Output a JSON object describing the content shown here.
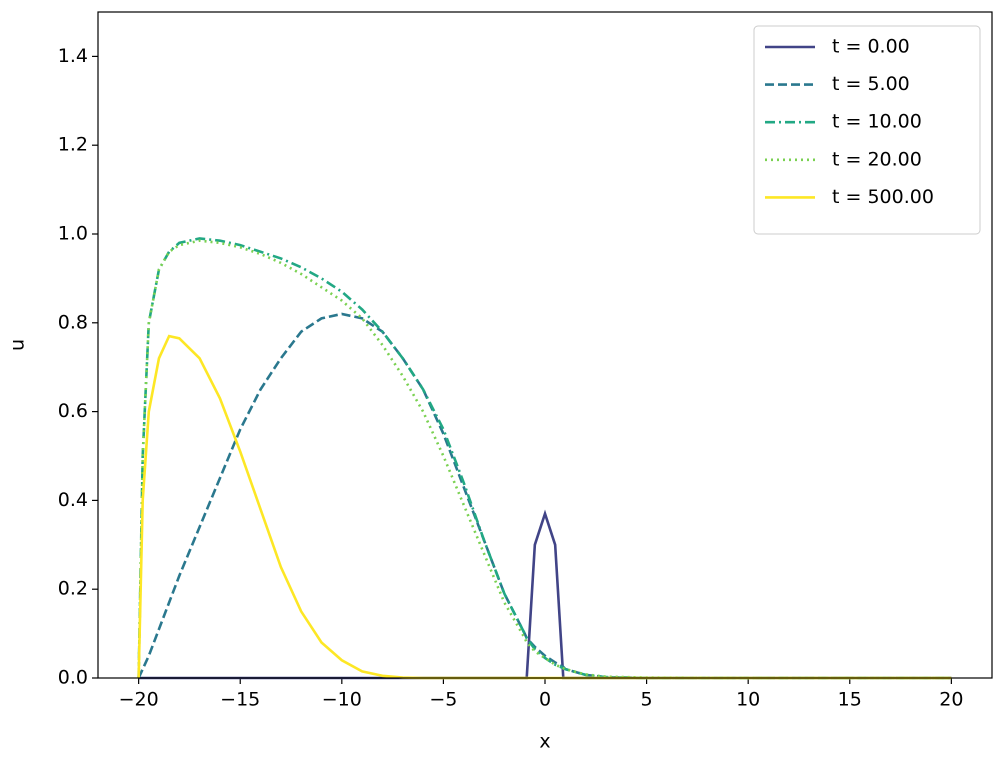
{
  "chart_data": {
    "type": "line",
    "x": [
      -20,
      -19.8,
      -19.5,
      -19,
      -18.5,
      -18,
      -17,
      -16,
      -15,
      -14,
      -13,
      -12,
      -11,
      -10,
      -9,
      -8,
      -7,
      -6,
      -5,
      -4,
      -3,
      -2,
      -1,
      -0.9,
      -0.5,
      0,
      0.5,
      0.9,
      1,
      2,
      3,
      5,
      10,
      15,
      20
    ],
    "series": [
      {
        "name": "t = 0.00",
        "color": "#414487",
        "dash": "solid",
        "values": [
          0,
          0,
          0,
          0,
          0,
          0,
          0,
          0,
          0,
          0,
          0,
          0,
          0,
          0,
          0,
          0,
          0,
          0,
          0,
          0,
          0,
          0,
          0,
          0,
          0.3,
          0.37,
          0.3,
          0,
          0,
          0,
          0,
          0,
          0,
          0,
          0
        ]
      },
      {
        "name": "t = 5.00",
        "color": "#2a788e",
        "dash": "dashed",
        "values": [
          0,
          0.02,
          0.05,
          0.11,
          0.17,
          0.23,
          0.34,
          0.45,
          0.56,
          0.65,
          0.72,
          0.78,
          0.81,
          0.82,
          0.81,
          0.78,
          0.72,
          0.65,
          0.55,
          0.43,
          0.31,
          0.19,
          0.1,
          0.09,
          0.07,
          0.05,
          0.035,
          0.025,
          0.02,
          0.007,
          0.002,
          0,
          0,
          0,
          0
        ]
      },
      {
        "name": "t = 10.00",
        "color": "#22a884",
        "dash": "dashdot",
        "values": [
          0,
          0.5,
          0.8,
          0.92,
          0.96,
          0.98,
          0.99,
          0.985,
          0.975,
          0.96,
          0.945,
          0.925,
          0.9,
          0.87,
          0.83,
          0.78,
          0.72,
          0.65,
          0.56,
          0.44,
          0.31,
          0.19,
          0.1,
          0.09,
          0.065,
          0.045,
          0.03,
          0.022,
          0.02,
          0.007,
          0.002,
          0,
          0,
          0,
          0
        ]
      },
      {
        "name": "t = 20.00",
        "color": "#7ad151",
        "dash": "dotted",
        "values": [
          0,
          0.5,
          0.8,
          0.92,
          0.96,
          0.975,
          0.985,
          0.98,
          0.97,
          0.955,
          0.935,
          0.91,
          0.88,
          0.85,
          0.81,
          0.75,
          0.68,
          0.6,
          0.5,
          0.39,
          0.28,
          0.17,
          0.09,
          0.08,
          0.06,
          0.045,
          0.03,
          0.022,
          0.02,
          0.008,
          0.003,
          0.001,
          0,
          0,
          0
        ]
      },
      {
        "name": "t = 500.00",
        "color": "#fde725",
        "dash": "solid",
        "values": [
          0,
          0.4,
          0.6,
          0.72,
          0.77,
          0.765,
          0.72,
          0.63,
          0.51,
          0.38,
          0.25,
          0.15,
          0.08,
          0.04,
          0.015,
          0.005,
          0.001,
          0,
          0,
          0,
          0,
          0,
          0,
          0,
          0,
          0,
          0,
          0,
          0,
          0,
          0,
          0,
          0,
          0,
          0
        ]
      }
    ],
    "xlabel": "x",
    "ylabel": "u",
    "xlim": [
      -22,
      22
    ],
    "ylim": [
      0,
      1.5
    ],
    "xticks": [
      {
        "value": -20,
        "label": "−20"
      },
      {
        "value": -15,
        "label": "−15"
      },
      {
        "value": -10,
        "label": "−10"
      },
      {
        "value": -5,
        "label": "−5"
      },
      0,
      5,
      10,
      15,
      20
    ],
    "yticks": [
      {
        "value": 0,
        "label": "0.0"
      },
      {
        "value": 0.2,
        "label": "0.2"
      },
      {
        "value": 0.4,
        "label": "0.4"
      },
      {
        "value": 0.6,
        "label": "0.6"
      },
      {
        "value": 0.8,
        "label": "0.8"
      },
      {
        "value": 1,
        "label": "1.0"
      },
      {
        "value": 1.2,
        "label": "1.2"
      },
      {
        "value": 1.4,
        "label": "1.4"
      }
    ],
    "legend": "upper right"
  }
}
